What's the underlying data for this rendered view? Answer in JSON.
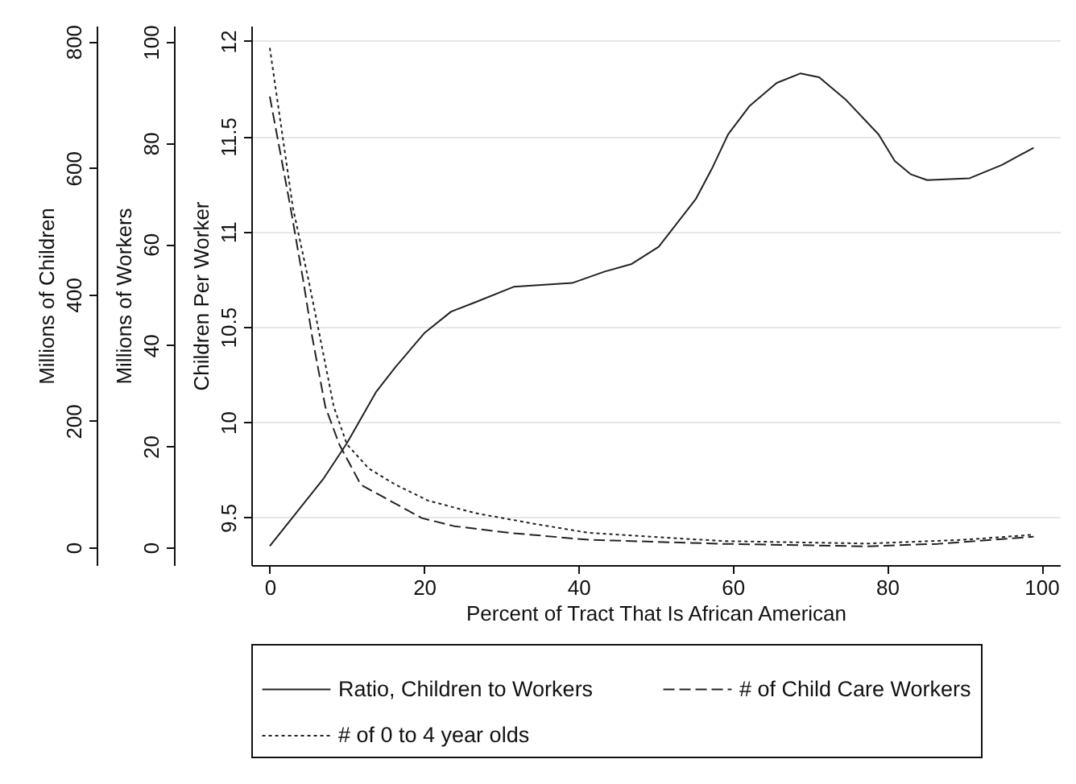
{
  "chart_data": {
    "type": "line",
    "xlabel": "Percent of Tract That Is African American",
    "ylabel": "Children Per Worker",
    "y2label": "Millions of Workers",
    "y3label": "Millions of Children",
    "xlim": [
      -2.4,
      102.4
    ],
    "xticks": [
      0,
      20,
      40,
      60,
      80,
      100
    ],
    "ylim": [
      9.25,
      12.08
    ],
    "yticks": [
      9.5,
      10,
      10.5,
      11,
      11.5,
      12
    ],
    "y2lim": [
      -3.5,
      103.2
    ],
    "y2ticks": [
      0,
      20,
      40,
      60,
      80,
      100
    ],
    "y3lim": [
      -28,
      825
    ],
    "y3ticks": [
      0,
      200,
      400,
      600,
      800
    ],
    "grid": "y",
    "legend": "bottom",
    "series": [
      {
        "name": "Ratio, Children to Workers",
        "color": "#222222",
        "line_style": "solid",
        "axis": "y",
        "x": [
          0,
          6.9,
          10,
          13.8,
          16.3,
          20.1,
          23.5,
          26.7,
          31.6,
          39.2,
          43.4,
          46.9,
          50.4,
          55.2,
          57.3,
          59.4,
          62.2,
          65.7,
          68.8,
          71.2,
          74.7,
          78.9,
          81,
          83.1,
          85.2,
          90.7,
          94.9,
          99
        ],
        "values": [
          9.35,
          9.7,
          9.89,
          10.16,
          10.29,
          10.47,
          10.58,
          10.63,
          10.71,
          10.73,
          10.79,
          10.83,
          10.92,
          11.17,
          11.33,
          11.51,
          11.66,
          11.78,
          11.83,
          11.81,
          11.69,
          11.51,
          11.37,
          11.3,
          11.27,
          11.28,
          11.35,
          11.44
        ]
      },
      {
        "name": "# of Child Care Workers",
        "color": "#222222",
        "line_style": "dashed",
        "axis": "y2",
        "x": [
          0,
          2.7,
          4.4,
          5.5,
          7.2,
          9,
          11.8,
          14.9,
          19.7,
          23.9,
          30.9,
          41.3,
          58.7,
          77.5,
          86.6,
          99
        ],
        "values": [
          89.2,
          67.1,
          52.2,
          41.6,
          27.8,
          20.4,
          12.4,
          9.8,
          5.8,
          4.2,
          2.9,
          1.5,
          0.7,
          0.2,
          0.7,
          2.1
        ]
      },
      {
        "name": "# of 0 to 4 year olds",
        "color": "#222222",
        "line_style": "dotted",
        "axis": "y3",
        "x": [
          0,
          3,
          5.1,
          6.5,
          8.3,
          10,
          12.8,
          16.3,
          20.5,
          26.7,
          34.4,
          41.3,
          58.7,
          77.5,
          90,
          99
        ],
        "values": [
          790,
          537,
          418,
          333,
          222,
          163,
          125,
          99,
          74,
          54,
          37,
          23,
          10,
          6,
          12,
          20
        ]
      }
    ]
  }
}
